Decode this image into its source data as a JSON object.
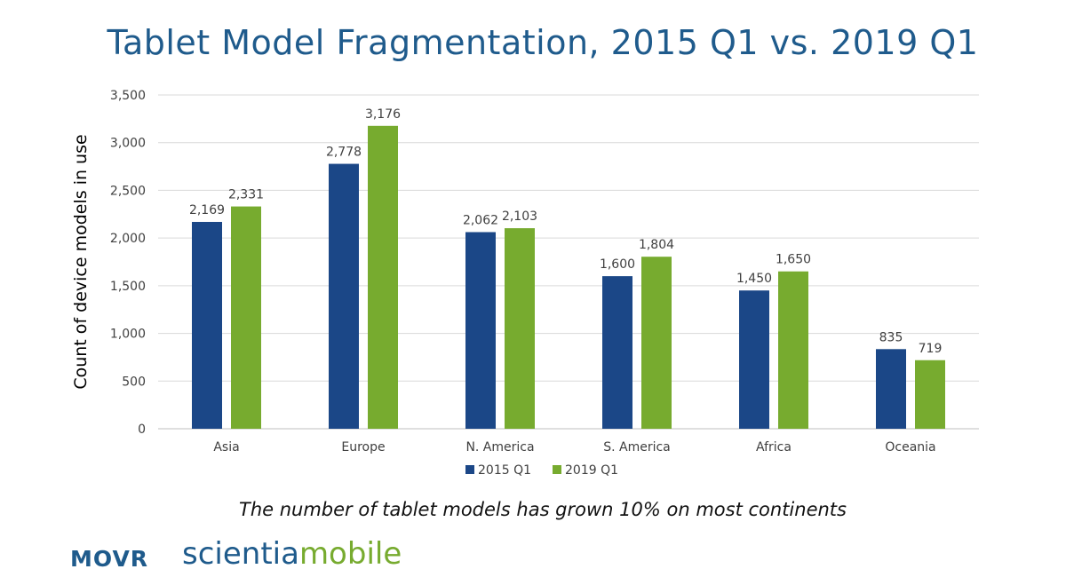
{
  "title": "Tablet Model Fragmentation, 2015 Q1 vs. 2019 Q1",
  "subtitle": "The number of tablet models has grown 10% on most continents",
  "logos": {
    "movr": "MOVR",
    "scientia_part1": "scientia",
    "scientia_part2": "mobile"
  },
  "colors": {
    "title": "#1f5b8c",
    "series_2015": "#1b4787",
    "series_2019": "#77ab2f",
    "grid": "#d9d9d9"
  },
  "chart_data": {
    "type": "bar",
    "title": "Tablet Model Fragmentation, 2015 Q1 vs. 2019 Q1",
    "xlabel": "",
    "ylabel": "Count of device models in use",
    "categories": [
      "Asia",
      "Europe",
      "N. America",
      "S. America",
      "Africa",
      "Oceania"
    ],
    "series": [
      {
        "name": "2015 Q1",
        "values": [
          2169,
          2778,
          2062,
          1600,
          1450,
          835
        ],
        "labels": [
          "2,169",
          "2,778",
          "2,062",
          "1,600",
          "1,450",
          "835"
        ]
      },
      {
        "name": "2019 Q1",
        "values": [
          2331,
          3176,
          2103,
          1804,
          1650,
          719
        ],
        "labels": [
          "2,331",
          "3,176",
          "2,103",
          "1,804",
          "1,650",
          "719"
        ]
      }
    ],
    "ylim": [
      0,
      3500
    ],
    "yticks": [
      0,
      500,
      1000,
      1500,
      2000,
      2500,
      3000,
      3500
    ],
    "ytick_labels": [
      "0",
      "500",
      "1,000",
      "1,500",
      "2,000",
      "2,500",
      "3,000",
      "3,500"
    ],
    "grid": true,
    "legend_position": "bottom"
  }
}
